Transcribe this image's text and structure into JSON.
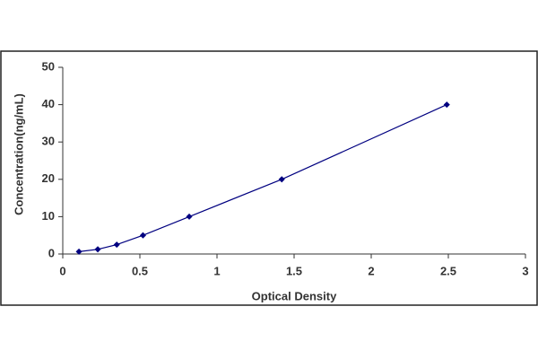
{
  "chart_data": {
    "type": "line",
    "x_label": "Optical Density",
    "y_label": "Concentration(ng/mL)",
    "x": [
      0.105,
      0.227,
      0.35,
      0.52,
      0.82,
      1.42,
      2.49
    ],
    "series": [
      {
        "color": "#000080",
        "values": [
          0.625,
          1.25,
          2.5,
          5,
          10,
          20,
          40
        ]
      }
    ],
    "xlim": [
      0,
      3
    ],
    "xticks": [
      0,
      0.5,
      1,
      1.5,
      2,
      2.5,
      3
    ],
    "ylim": [
      0,
      50
    ],
    "yticks": [
      0,
      10,
      20,
      30,
      40,
      50
    ],
    "markers": true,
    "grid": false
  }
}
